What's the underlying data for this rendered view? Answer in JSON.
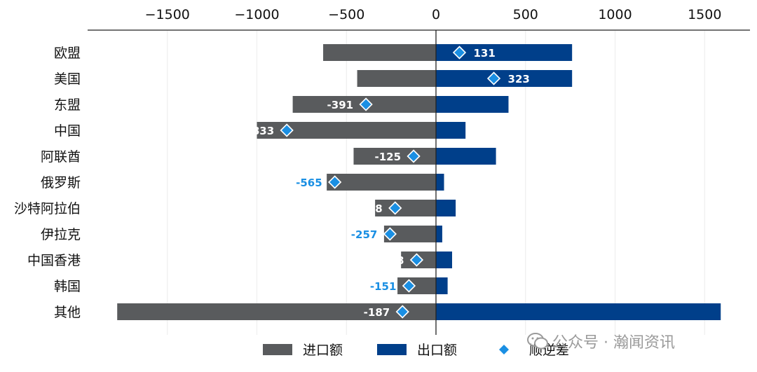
{
  "chart_data": {
    "type": "bar",
    "orientation": "horizontal",
    "categories": [
      "欧盟",
      "美国",
      "东盟",
      "中国",
      "阿联酋",
      "俄罗斯",
      "沙特阿拉伯",
      "伊拉克",
      "中国香港",
      "韩国",
      "其他"
    ],
    "series": [
      {
        "name": "进口额",
        "kind": "bar",
        "color": "#595b5d",
        "values": [
          -630,
          -440,
          -800,
          -1000,
          -460,
          -610,
          -340,
          -290,
          -195,
          -215,
          -1780
        ]
      },
      {
        "name": "出口额",
        "kind": "bar",
        "color": "#003f8a",
        "values": [
          760,
          760,
          405,
          165,
          335,
          45,
          110,
          35,
          90,
          65,
          1590
        ]
      },
      {
        "name": "顺逆差",
        "kind": "marker",
        "color": "#1a8fe3",
        "values": [
          131,
          323,
          -391,
          -833,
          -125,
          -565,
          -228,
          -257,
          -108,
          -151,
          -187
        ],
        "labels": [
          "131",
          "323",
          "-391",
          "-833",
          "-125",
          "-565",
          "-228",
          "-257",
          "-108",
          "-151",
          "-187"
        ]
      }
    ],
    "xlim": [
      -1950,
      1750
    ],
    "x_ticks": [
      -1500,
      -1000,
      -500,
      0,
      500,
      1000,
      1500
    ],
    "x_tick_labels": [
      "−1500",
      "−1000",
      "−500",
      "0",
      "500",
      "1000",
      "1500"
    ],
    "axis_position": "top",
    "grid": "vertical",
    "legend_position": "bottom"
  },
  "watermark": {
    "text": "公众号 · 瀚闻资讯",
    "icon": "wechat-icon"
  }
}
